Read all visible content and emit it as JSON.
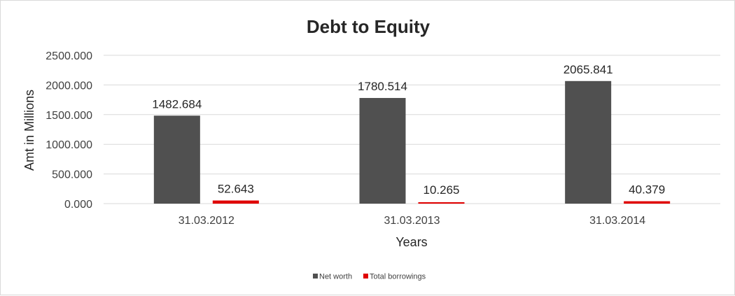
{
  "chart_data": {
    "type": "bar",
    "title": "Debt to Equity",
    "xlabel": "Years",
    "ylabel": "Amt in Millions",
    "categories": [
      "31.03.2012",
      "31.03.2013",
      "31.03.2014"
    ],
    "series": [
      {
        "name": "Net worth",
        "values": [
          1482.684,
          1780.514,
          2065.841
        ],
        "labels": [
          "1482.684",
          "1780.514",
          "2065.841"
        ],
        "color": "#505050"
      },
      {
        "name": "Total borrowings",
        "values": [
          52.643,
          10.265,
          40.379
        ],
        "labels": [
          "52.643",
          "10.265",
          "40.379"
        ],
        "color": "#e00000"
      }
    ],
    "ylim": [
      0,
      2500
    ],
    "yticks": [
      0,
      500,
      1000,
      1500,
      2000,
      2500
    ],
    "ytick_labels": [
      "0.000",
      "500.000",
      "1000.000",
      "1500.000",
      "2000.000",
      "2500.000"
    ],
    "grid": true,
    "legend_position": "bottom",
    "gridline_color": "#d9d9d9"
  }
}
